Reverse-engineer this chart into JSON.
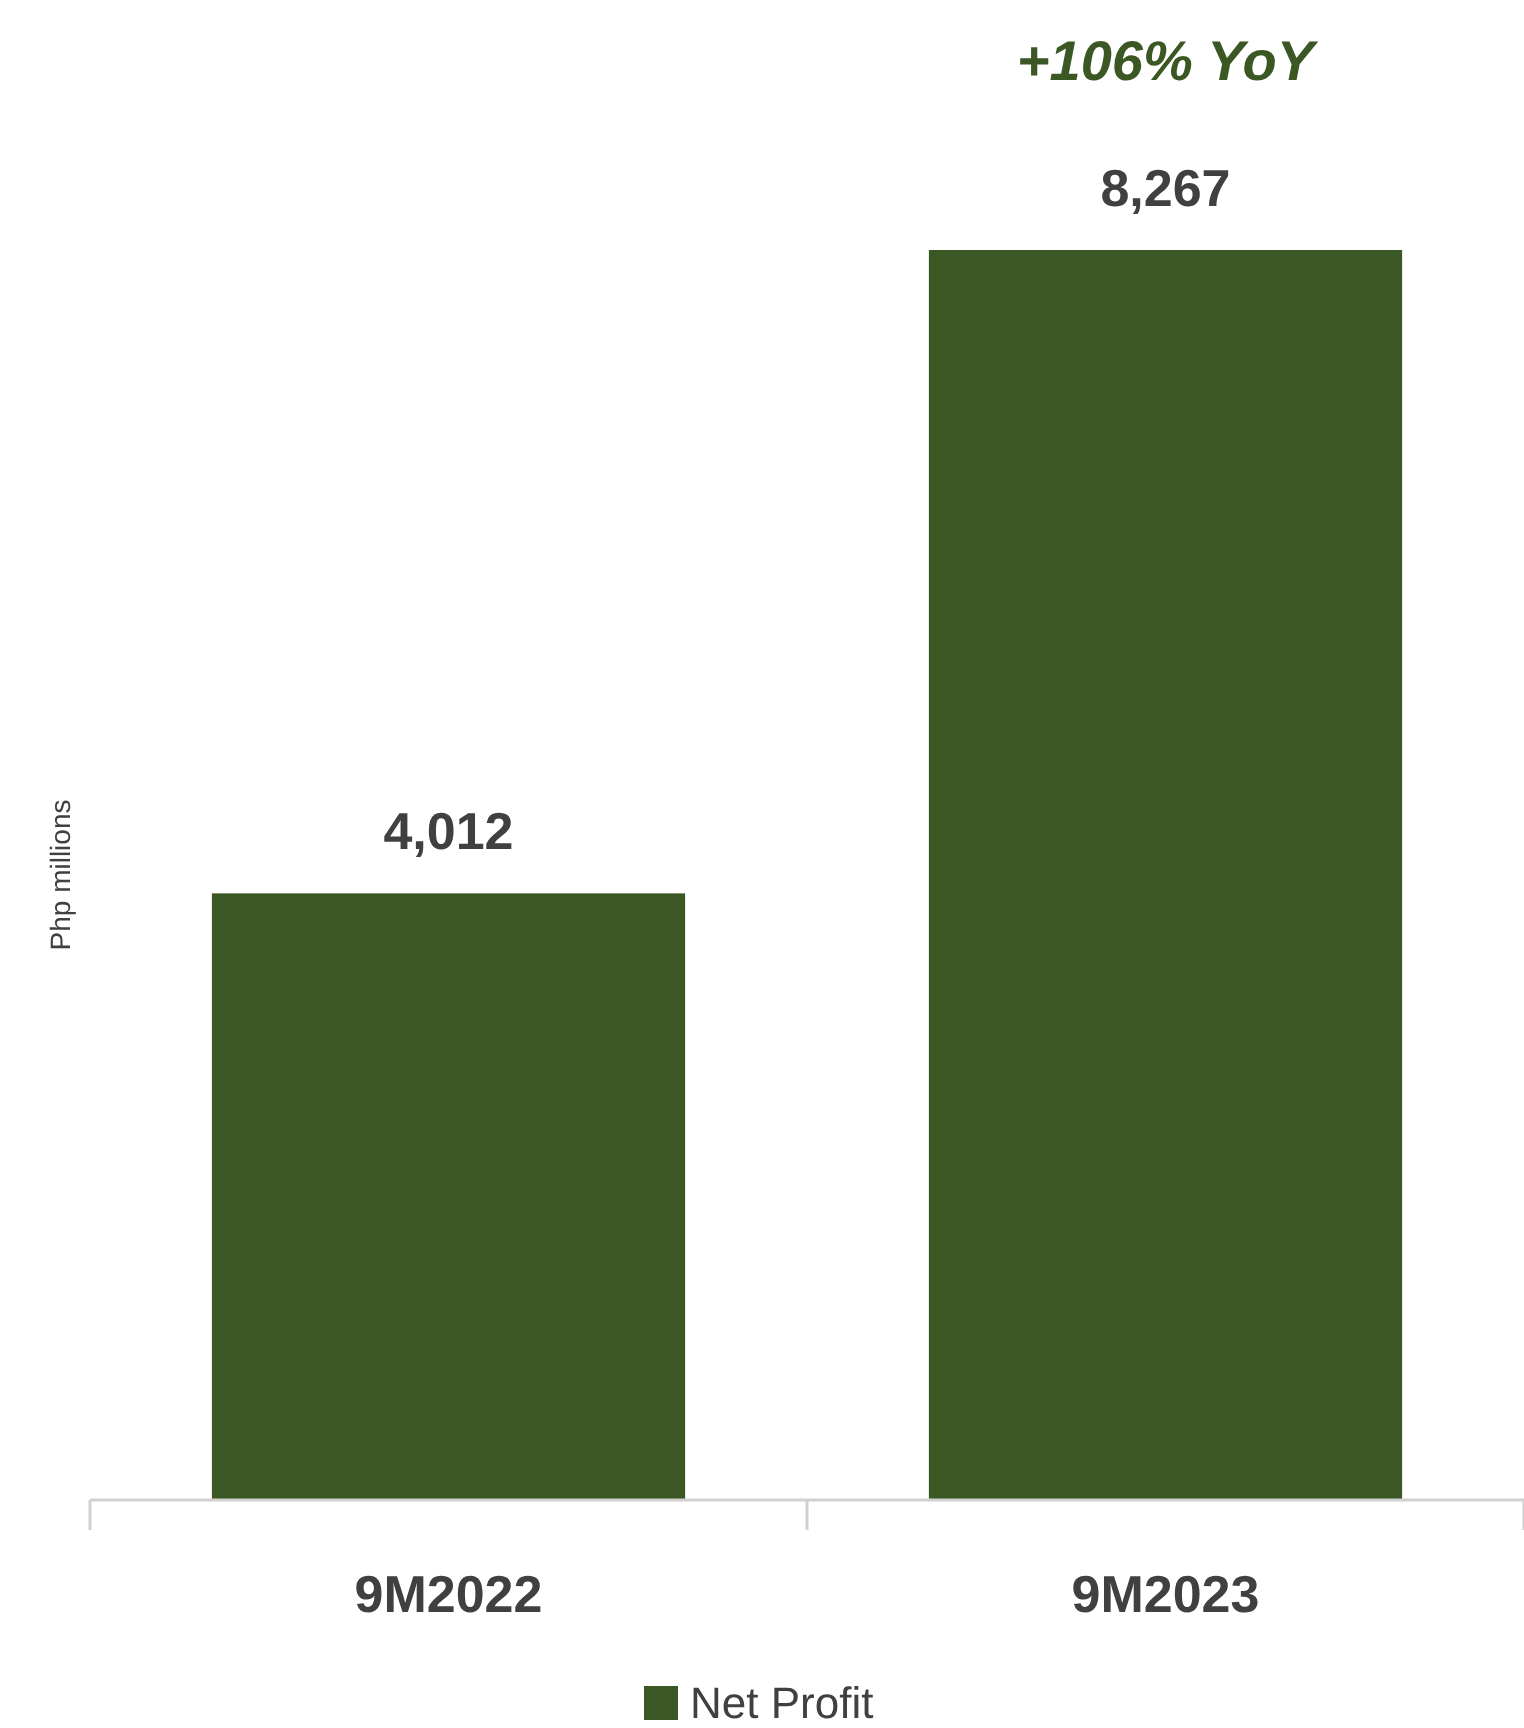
{
  "chart_data": {
    "type": "bar",
    "ylabel": "Php millions",
    "categories": [
      "9M2022",
      "9M2023"
    ],
    "series": [
      {
        "name": "Net Profit",
        "color": "#3b5723",
        "values": [
          4012,
          8267
        ],
        "value_labels": [
          "4,012",
          "8,267"
        ]
      }
    ],
    "annotations": [
      "+106% YoY"
    ],
    "legend": "bottom"
  }
}
